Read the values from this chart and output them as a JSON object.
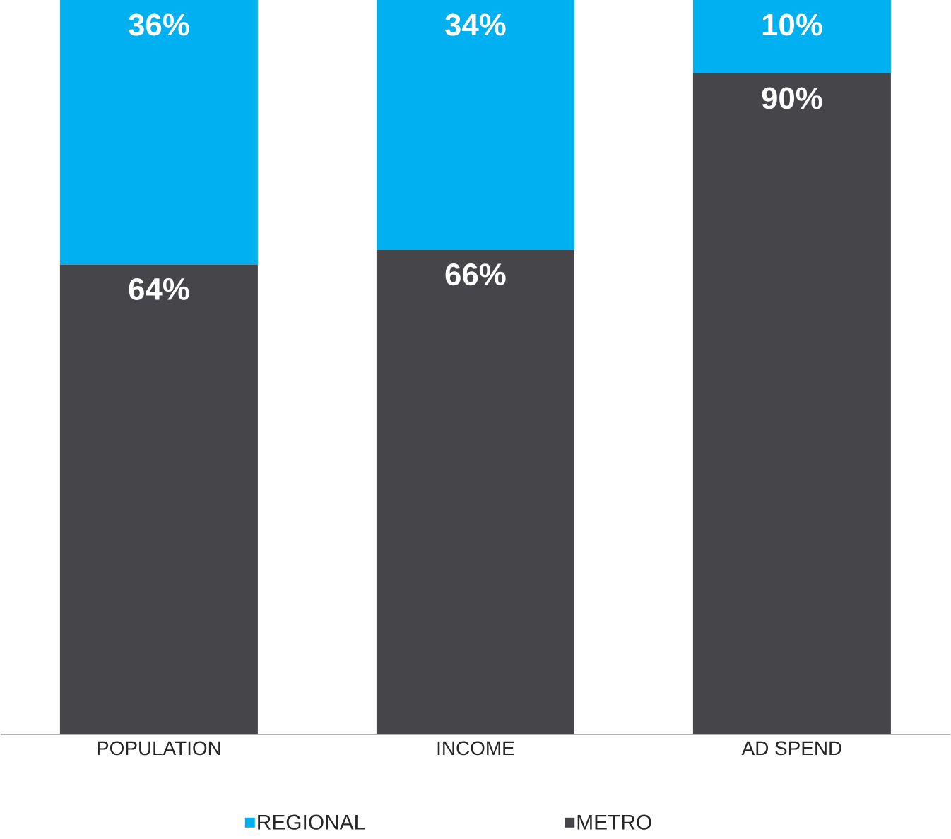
{
  "chart_data": {
    "type": "bar",
    "stacked": true,
    "categories": [
      "POPULATION",
      "INCOME",
      "AD SPEND"
    ],
    "series": [
      {
        "name": "METRO",
        "color": "#46464a",
        "values": [
          64,
          66,
          90
        ],
        "value_labels": [
          "64%",
          "66%",
          "90%"
        ]
      },
      {
        "name": "REGIONAL",
        "color": "#00b0f0",
        "values": [
          36,
          34,
          10
        ],
        "value_labels": [
          "36%",
          "34%",
          "10%"
        ]
      }
    ],
    "legend": "bottom"
  }
}
